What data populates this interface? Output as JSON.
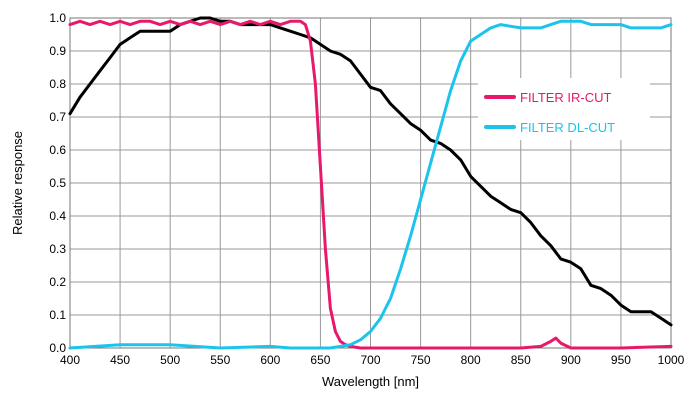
{
  "chart_data": {
    "type": "line",
    "title": "",
    "xlabel": "Wavelength [nm]",
    "ylabel": "Relative response",
    "xlim": [
      400,
      1000
    ],
    "ylim": [
      0,
      1.0
    ],
    "x_ticks": [
      400,
      450,
      500,
      550,
      600,
      650,
      700,
      750,
      800,
      850,
      900,
      950,
      1000
    ],
    "y_ticks": [
      0.0,
      0.1,
      0.2,
      0.3,
      0.4,
      0.5,
      0.6,
      0.7,
      0.8,
      0.9,
      1.0
    ],
    "x_tick_labels": [
      "400",
      "450",
      "500",
      "550",
      "600",
      "650",
      "700",
      "750",
      "800",
      "850",
      "900",
      "950",
      "1000"
    ],
    "y_tick_labels": [
      "0.0",
      "0.1",
      "0.2",
      "0.3",
      "0.4",
      "0.5",
      "0.6",
      "0.7",
      "0.8",
      "0.9",
      "1.0"
    ],
    "grid": true,
    "legend_position": "right",
    "series": [
      {
        "name": "",
        "color": "#000000",
        "x": [
          400,
          410,
          420,
          430,
          440,
          450,
          460,
          470,
          480,
          490,
          500,
          510,
          520,
          530,
          540,
          550,
          560,
          570,
          580,
          590,
          600,
          610,
          620,
          630,
          640,
          650,
          660,
          670,
          680,
          690,
          700,
          710,
          720,
          730,
          740,
          750,
          760,
          770,
          780,
          790,
          800,
          810,
          820,
          830,
          840,
          850,
          860,
          870,
          880,
          890,
          900,
          910,
          920,
          930,
          940,
          950,
          960,
          970,
          980,
          990,
          1000
        ],
        "values": [
          0.71,
          0.76,
          0.8,
          0.84,
          0.88,
          0.92,
          0.94,
          0.96,
          0.96,
          0.96,
          0.96,
          0.98,
          0.99,
          1.0,
          1.0,
          0.99,
          0.99,
          0.98,
          0.98,
          0.98,
          0.98,
          0.97,
          0.96,
          0.95,
          0.94,
          0.92,
          0.9,
          0.89,
          0.87,
          0.83,
          0.79,
          0.78,
          0.74,
          0.71,
          0.68,
          0.66,
          0.63,
          0.62,
          0.6,
          0.57,
          0.52,
          0.49,
          0.46,
          0.44,
          0.42,
          0.41,
          0.38,
          0.34,
          0.31,
          0.27,
          0.26,
          0.24,
          0.19,
          0.18,
          0.16,
          0.13,
          0.11,
          0.11,
          0.11,
          0.09,
          0.07
        ]
      },
      {
        "name": "FILTER IR-CUT",
        "color": "#e8196a",
        "x": [
          400,
          410,
          420,
          430,
          440,
          450,
          460,
          470,
          480,
          490,
          500,
          510,
          520,
          530,
          540,
          550,
          560,
          570,
          580,
          590,
          600,
          610,
          620,
          630,
          635,
          640,
          645,
          650,
          655,
          660,
          665,
          670,
          675,
          680,
          690,
          700,
          750,
          800,
          850,
          870,
          880,
          885,
          890,
          900,
          950,
          1000
        ],
        "values": [
          0.98,
          0.99,
          0.98,
          0.99,
          0.98,
          0.99,
          0.98,
          0.99,
          0.99,
          0.98,
          0.99,
          0.98,
          0.99,
          0.98,
          0.99,
          0.98,
          0.99,
          0.98,
          0.99,
          0.98,
          0.99,
          0.98,
          0.99,
          0.99,
          0.98,
          0.93,
          0.8,
          0.55,
          0.3,
          0.12,
          0.05,
          0.02,
          0.01,
          0.005,
          0.0,
          0.0,
          0.0,
          0.0,
          0.0,
          0.005,
          0.02,
          0.03,
          0.015,
          0.0,
          0.0,
          0.005
        ]
      },
      {
        "name": "FILTER DL-CUT",
        "color": "#1cc4ec",
        "x": [
          400,
          450,
          500,
          550,
          600,
          620,
          640,
          650,
          660,
          670,
          680,
          690,
          700,
          710,
          720,
          730,
          740,
          750,
          760,
          770,
          780,
          790,
          800,
          810,
          820,
          830,
          840,
          850,
          860,
          870,
          880,
          890,
          900,
          910,
          920,
          930,
          940,
          950,
          960,
          970,
          980,
          990,
          1000
        ],
        "values": [
          0.0,
          0.01,
          0.01,
          0.0,
          0.005,
          0.0,
          0.0,
          0.0,
          0.0,
          0.005,
          0.01,
          0.025,
          0.05,
          0.09,
          0.15,
          0.24,
          0.34,
          0.45,
          0.56,
          0.67,
          0.78,
          0.87,
          0.93,
          0.95,
          0.97,
          0.98,
          0.975,
          0.97,
          0.97,
          0.97,
          0.98,
          0.99,
          0.99,
          0.99,
          0.98,
          0.98,
          0.98,
          0.98,
          0.97,
          0.97,
          0.97,
          0.97,
          0.98
        ]
      }
    ]
  }
}
